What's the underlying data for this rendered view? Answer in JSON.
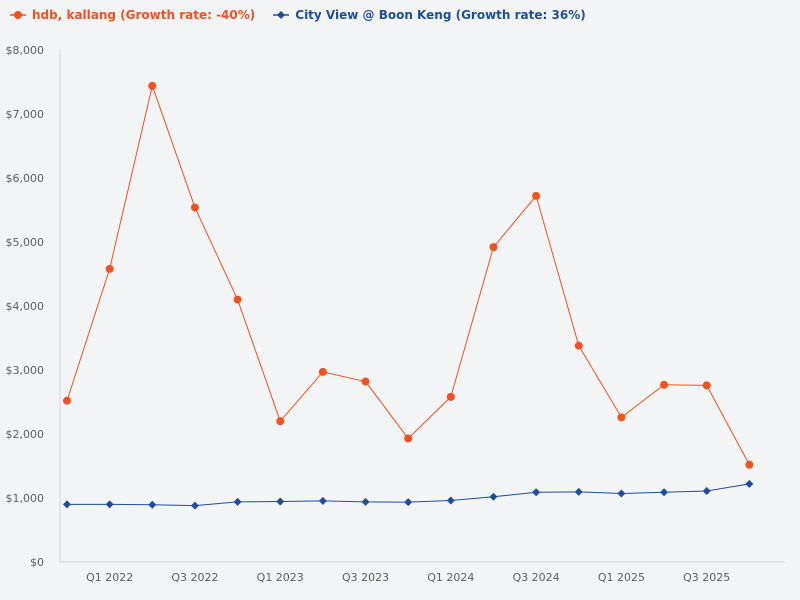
{
  "chart_data": {
    "type": "line",
    "title": "",
    "xlabel": "",
    "ylabel": "",
    "ylim": [
      0,
      8000
    ],
    "yticks": [
      0,
      1000,
      2000,
      3000,
      4000,
      5000,
      6000,
      7000,
      8000
    ],
    "ytick_labels": [
      "$0",
      "$1,000",
      "$2,000",
      "$3,000",
      "$4,000",
      "$5,000",
      "$6,000",
      "$7,000",
      "$8,000"
    ],
    "categories": [
      "Q4 2021",
      "Q1 2022",
      "Q2 2022",
      "Q3 2022",
      "Q4 2022",
      "Q1 2023",
      "Q2 2023",
      "Q3 2023",
      "Q4 2023",
      "Q1 2024",
      "Q2 2024",
      "Q3 2024",
      "Q4 2024",
      "Q1 2025",
      "Q2 2025",
      "Q3 2025",
      "Q4 2025"
    ],
    "xtick_labels": [
      "Q1 2022",
      "Q3 2022",
      "Q1 2023",
      "Q3 2023",
      "Q1 2024",
      "Q3 2024",
      "Q1 2025",
      "Q3 2025"
    ],
    "legend_position": "top-left",
    "grid": false,
    "series": [
      {
        "name": "hdb, kallang (Growth rate: -40%)",
        "color": "#f4511e",
        "marker": "circle",
        "values": [
          2520,
          4580,
          7440,
          5540,
          4100,
          2200,
          2970,
          2820,
          1930,
          2580,
          4920,
          5720,
          3380,
          2260,
          2770,
          2760,
          1520
        ]
      },
      {
        "name": "City View @ Boon Keng (Growth rate: 36%)",
        "color": "#1f4e9c",
        "marker": "diamond",
        "values": [
          900,
          900,
          895,
          880,
          940,
          945,
          955,
          940,
          935,
          960,
          1020,
          1090,
          1095,
          1070,
          1090,
          1110,
          1220
        ]
      }
    ]
  }
}
